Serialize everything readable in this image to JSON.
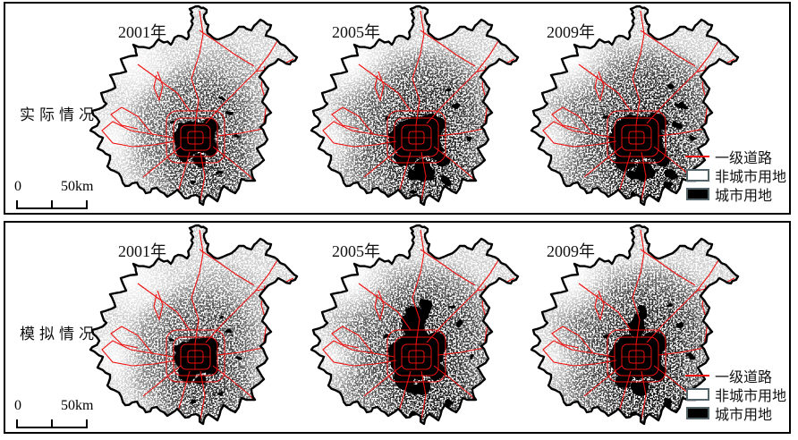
{
  "figure": {
    "rows": [
      {
        "label": "实际情况",
        "years": [
          "2001年",
          "2005年",
          "2009年"
        ]
      },
      {
        "label": "模拟情况",
        "years": [
          "2001年",
          "2005年",
          "2009年"
        ]
      }
    ],
    "scalebar": {
      "start": "0",
      "end": "50km"
    },
    "legend": {
      "items": [
        {
          "label": "一级道路",
          "swatch": "red-line"
        },
        {
          "label": "非城市用地",
          "swatch": "white-box"
        },
        {
          "label": "城市用地",
          "swatch": "black-box"
        }
      ]
    },
    "colors": {
      "road": "#ee1111",
      "boundary": "#000000",
      "urban": "#000000",
      "non_urban": "#ffffff",
      "legend_swatch_border": "#53646a"
    }
  }
}
